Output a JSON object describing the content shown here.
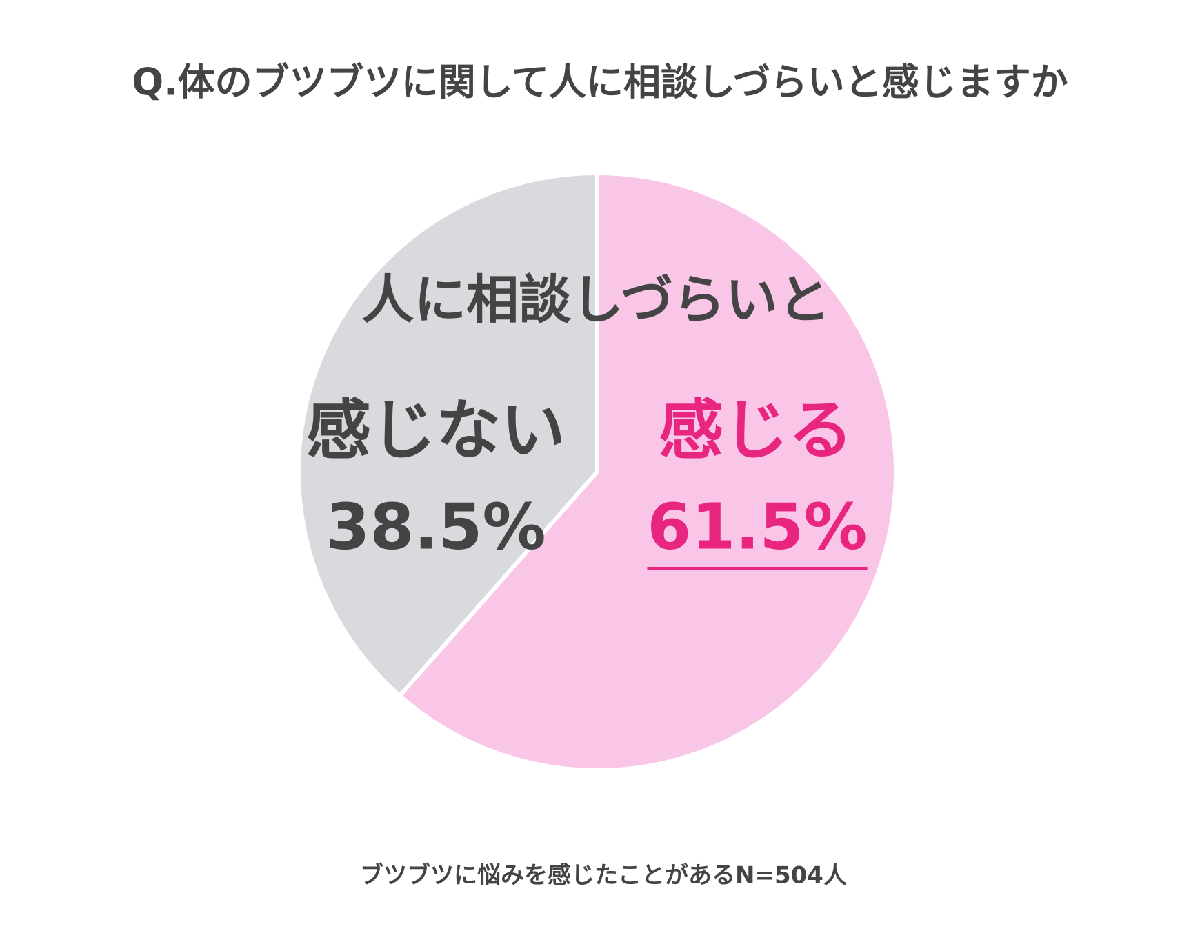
{
  "chart_data": {
    "type": "pie",
    "title": "Q.体のブツブツに関して人に相談しづらいと感じますか",
    "annotation": "人に相談しづらいと",
    "categories": [
      "感じる",
      "感じない"
    ],
    "values": [
      61.5,
      38.5
    ],
    "value_labels": [
      "61.5%",
      "38.5%"
    ],
    "colors": [
      "#f9c6e8",
      "#d9dadd"
    ],
    "start_angle": -90,
    "direction": "clockwise",
    "footnote": "ブツブツに悩みを感じたことがあるN=504人"
  }
}
